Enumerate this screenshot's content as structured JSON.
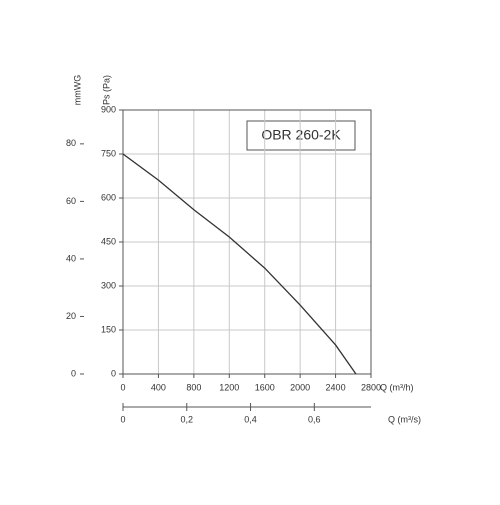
{
  "chart_data": {
    "type": "line",
    "title": "OBR 260-2K",
    "x": [
      0,
      400,
      800,
      1200,
      1600,
      2000,
      2400,
      2630
    ],
    "series": [
      {
        "color": "#333333",
        "values": [
          750,
          661,
          560,
          467,
          361,
          235,
          99,
          0
        ]
      }
    ],
    "xlim": [
      0,
      2800
    ],
    "xticks": [
      0,
      400,
      800,
      1200,
      1600,
      2000,
      2400,
      2800
    ],
    "x_label": "Q (m³/h)",
    "x2lim": [
      0,
      0.7778
    ],
    "x2ticks": [
      0,
      {
        "value": 0.2,
        "label": "0,2"
      },
      {
        "value": 0.4,
        "label": "0,4"
      },
      {
        "value": 0.6,
        "label": "0,6"
      }
    ],
    "x2_label": "Q (m³/s)",
    "ylim": [
      0,
      900
    ],
    "yticks": [
      0,
      150,
      300,
      450,
      600,
      750,
      900
    ],
    "y_label": "Ps (Pa)",
    "y2lim": [
      0,
      91.77
    ],
    "y2ticks": [
      0,
      20,
      40,
      60,
      80
    ],
    "y2_label": "mmWG",
    "grid": true
  }
}
